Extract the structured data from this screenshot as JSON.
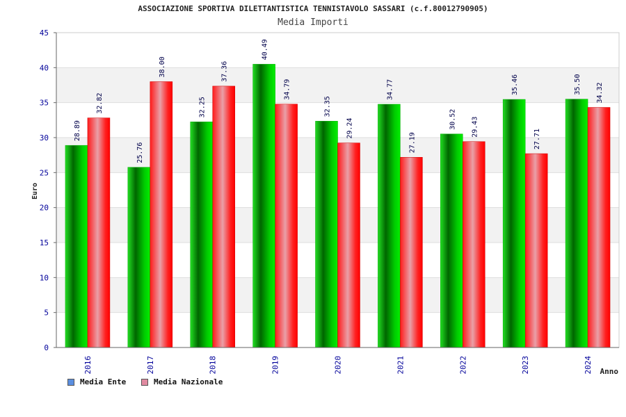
{
  "header": {
    "title": "ASSOCIAZIONE SPORTIVA DILETTANTISTICA TENNISTAVOLO SASSARI (c.f.80012790905)",
    "subtitle": "Media Importi"
  },
  "legend": {
    "items": [
      {
        "label": "Media Ente",
        "color": "#5b8fe0"
      },
      {
        "label": "Media Nazionale",
        "color": "#e08aa0"
      }
    ]
  },
  "chart_data": {
    "type": "bar",
    "title": "Media Importi",
    "xlabel": "Anno",
    "ylabel": "Euro",
    "ylim": [
      0,
      45
    ],
    "yticks": [
      0,
      5,
      10,
      15,
      20,
      25,
      30,
      35,
      40,
      45
    ],
    "categories": [
      "2016",
      "2017",
      "2018",
      "2019",
      "2020",
      "2021",
      "2022",
      "2023",
      "2024"
    ],
    "series": [
      {
        "name": "Media Ente",
        "color": "#00cc00",
        "values": [
          28.89,
          25.76,
          32.25,
          40.49,
          32.35,
          34.77,
          30.52,
          35.46,
          35.5
        ],
        "labels": [
          "28.89",
          "25.76",
          "32.25",
          "40.49",
          "32.35",
          "34.77",
          "30.52",
          "35.46",
          "35.50"
        ]
      },
      {
        "name": "Media Nazionale",
        "color": "#ff0000",
        "values": [
          32.82,
          38.0,
          37.36,
          34.79,
          29.24,
          27.19,
          29.43,
          27.71,
          34.32
        ],
        "labels": [
          "32.82",
          "38.00",
          "37.36",
          "34.79",
          "29.24",
          "27.19",
          "29.43",
          "27.71",
          "34.32"
        ]
      }
    ],
    "grid": true,
    "legend_position": "bottom-left"
  }
}
